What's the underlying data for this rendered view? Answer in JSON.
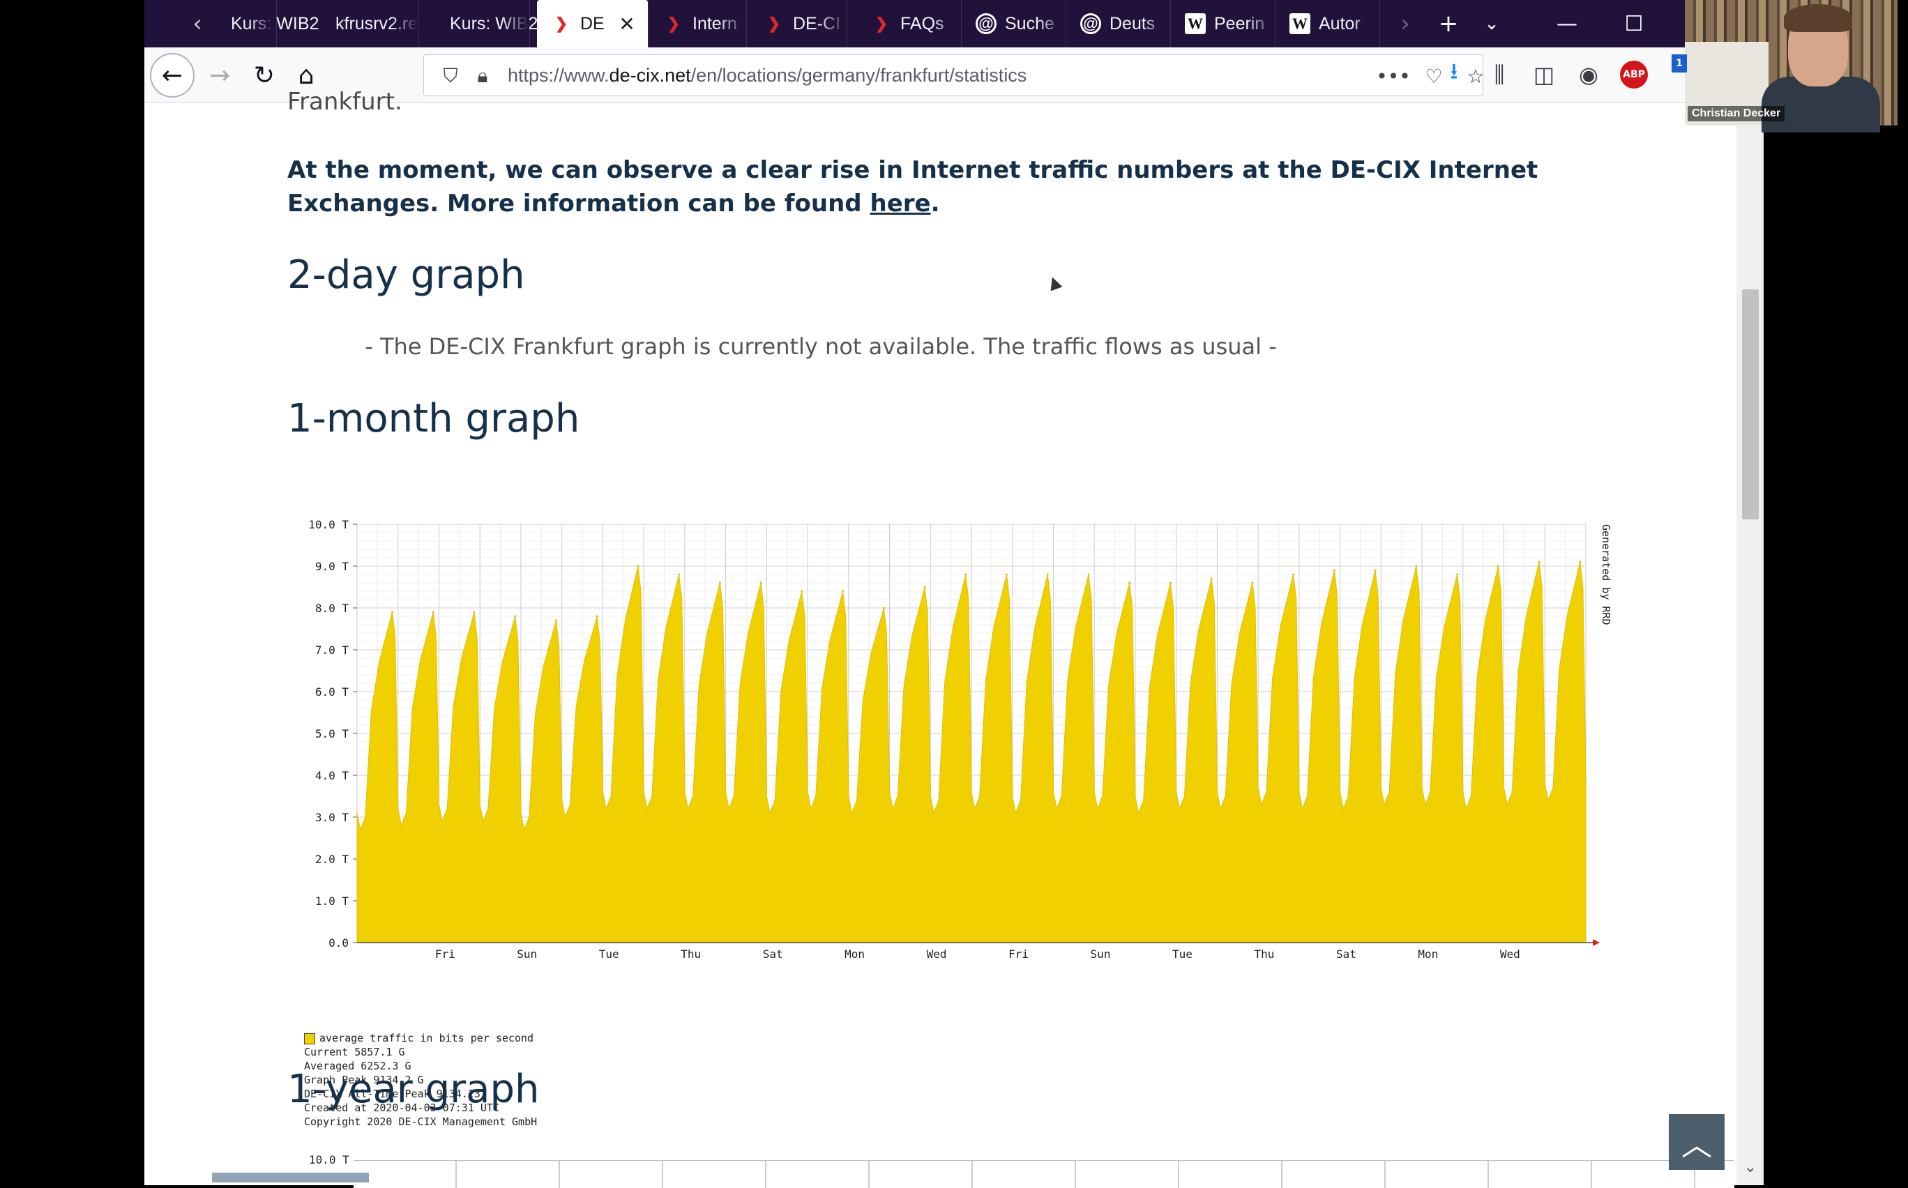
{
  "browser": {
    "tabs": [
      {
        "label": "Kurs: WIB2",
        "icon": "moodle-icon"
      },
      {
        "label": "kfrusrv2.re",
        "icon": "none"
      },
      {
        "label": "Kurs: WIB2",
        "icon": "moodle-icon"
      },
      {
        "label": "DE",
        "icon": "decix-icon",
        "active": true
      },
      {
        "label": "Intern",
        "icon": "decix-icon"
      },
      {
        "label": "DE-CI",
        "icon": "decix-icon"
      },
      {
        "label": "FAQs",
        "icon": "decix-icon"
      },
      {
        "label": "Suche",
        "icon": "circle-icon"
      },
      {
        "label": "Deuts",
        "icon": "circle-icon"
      },
      {
        "label": "Peerin",
        "icon": "wikipedia-icon"
      },
      {
        "label": "Autor",
        "icon": "wikipedia-icon"
      }
    ],
    "url": {
      "prefix": "https://www.",
      "domain": "de-cix.net",
      "path": "/en/locations/germany/frankfurt/statistics"
    },
    "tab_close": "✕",
    "wp_letter": "W",
    "abp_label": "ABP"
  },
  "page": {
    "cut_text": "Frankfurt.",
    "notice_text": "At the moment, we can observe a clear rise in Internet traffic numbers at the DE-CIX Internet Exchanges. More information can be found ",
    "notice_link": "here",
    "notice_end": ".",
    "heading_2day": "2-day graph",
    "unavailable": "- The DE-CIX Frankfurt graph is currently not available. The traffic flows as usual -",
    "heading_1month": "1-month graph",
    "heading_1year": "1-year graph",
    "year_graph_top_tick": "10.0 T"
  },
  "graph": {
    "side_label": "Generated by RRD",
    "legend": [
      "average traffic in bits per second",
      "Current 5857.1 G",
      "Averaged 6252.3 G",
      "Graph Peak 9134.2 G",
      "DE-CIX All-Time Peak 9134.23",
      "Created at 2020-04-03 07:31 UTC",
      "Copyright 2020 DE-CIX Management GmbH"
    ]
  },
  "chart_data": {
    "type": "area",
    "ylim": [
      0,
      10
    ],
    "ylabel": "",
    "xlabel": "",
    "y_ticks": [
      "0.0",
      "1.0 T",
      "2.0 T",
      "3.0 T",
      "4.0 T",
      "5.0 T",
      "6.0 T",
      "7.0 T",
      "8.0 T",
      "9.0 T",
      "10.0 T"
    ],
    "x_ticks": [
      "Fri",
      "Sun",
      "Tue",
      "Thu",
      "Sat",
      "Mon",
      "Wed",
      "Fri",
      "Sun",
      "Tue",
      "Thu",
      "Sat",
      "Mon",
      "Wed"
    ],
    "series": [
      {
        "name": "average traffic in bits per second",
        "color": "#f0d000",
        "daily_peaks": [
          7.9,
          7.9,
          7.9,
          7.8,
          7.7,
          7.8,
          9.0,
          8.8,
          8.6,
          8.6,
          8.4,
          8.4,
          8.0,
          8.5,
          8.8,
          8.8,
          8.8,
          8.8,
          8.6,
          8.6,
          8.7,
          8.6,
          8.8,
          8.9,
          8.9,
          9.0,
          8.8,
          9.0,
          9.1,
          9.1
        ],
        "daily_lows": [
          2.7,
          2.8,
          2.9,
          2.9,
          2.7,
          3.0,
          3.2,
          3.2,
          3.2,
          3.2,
          3.1,
          3.2,
          3.1,
          3.2,
          3.1,
          3.2,
          3.1,
          3.2,
          3.2,
          3.1,
          3.2,
          3.2,
          3.3,
          3.2,
          3.2,
          3.3,
          3.3,
          3.2,
          3.3,
          3.4
        ]
      }
    ]
  },
  "webcam": {
    "name": "Christian Decker"
  }
}
